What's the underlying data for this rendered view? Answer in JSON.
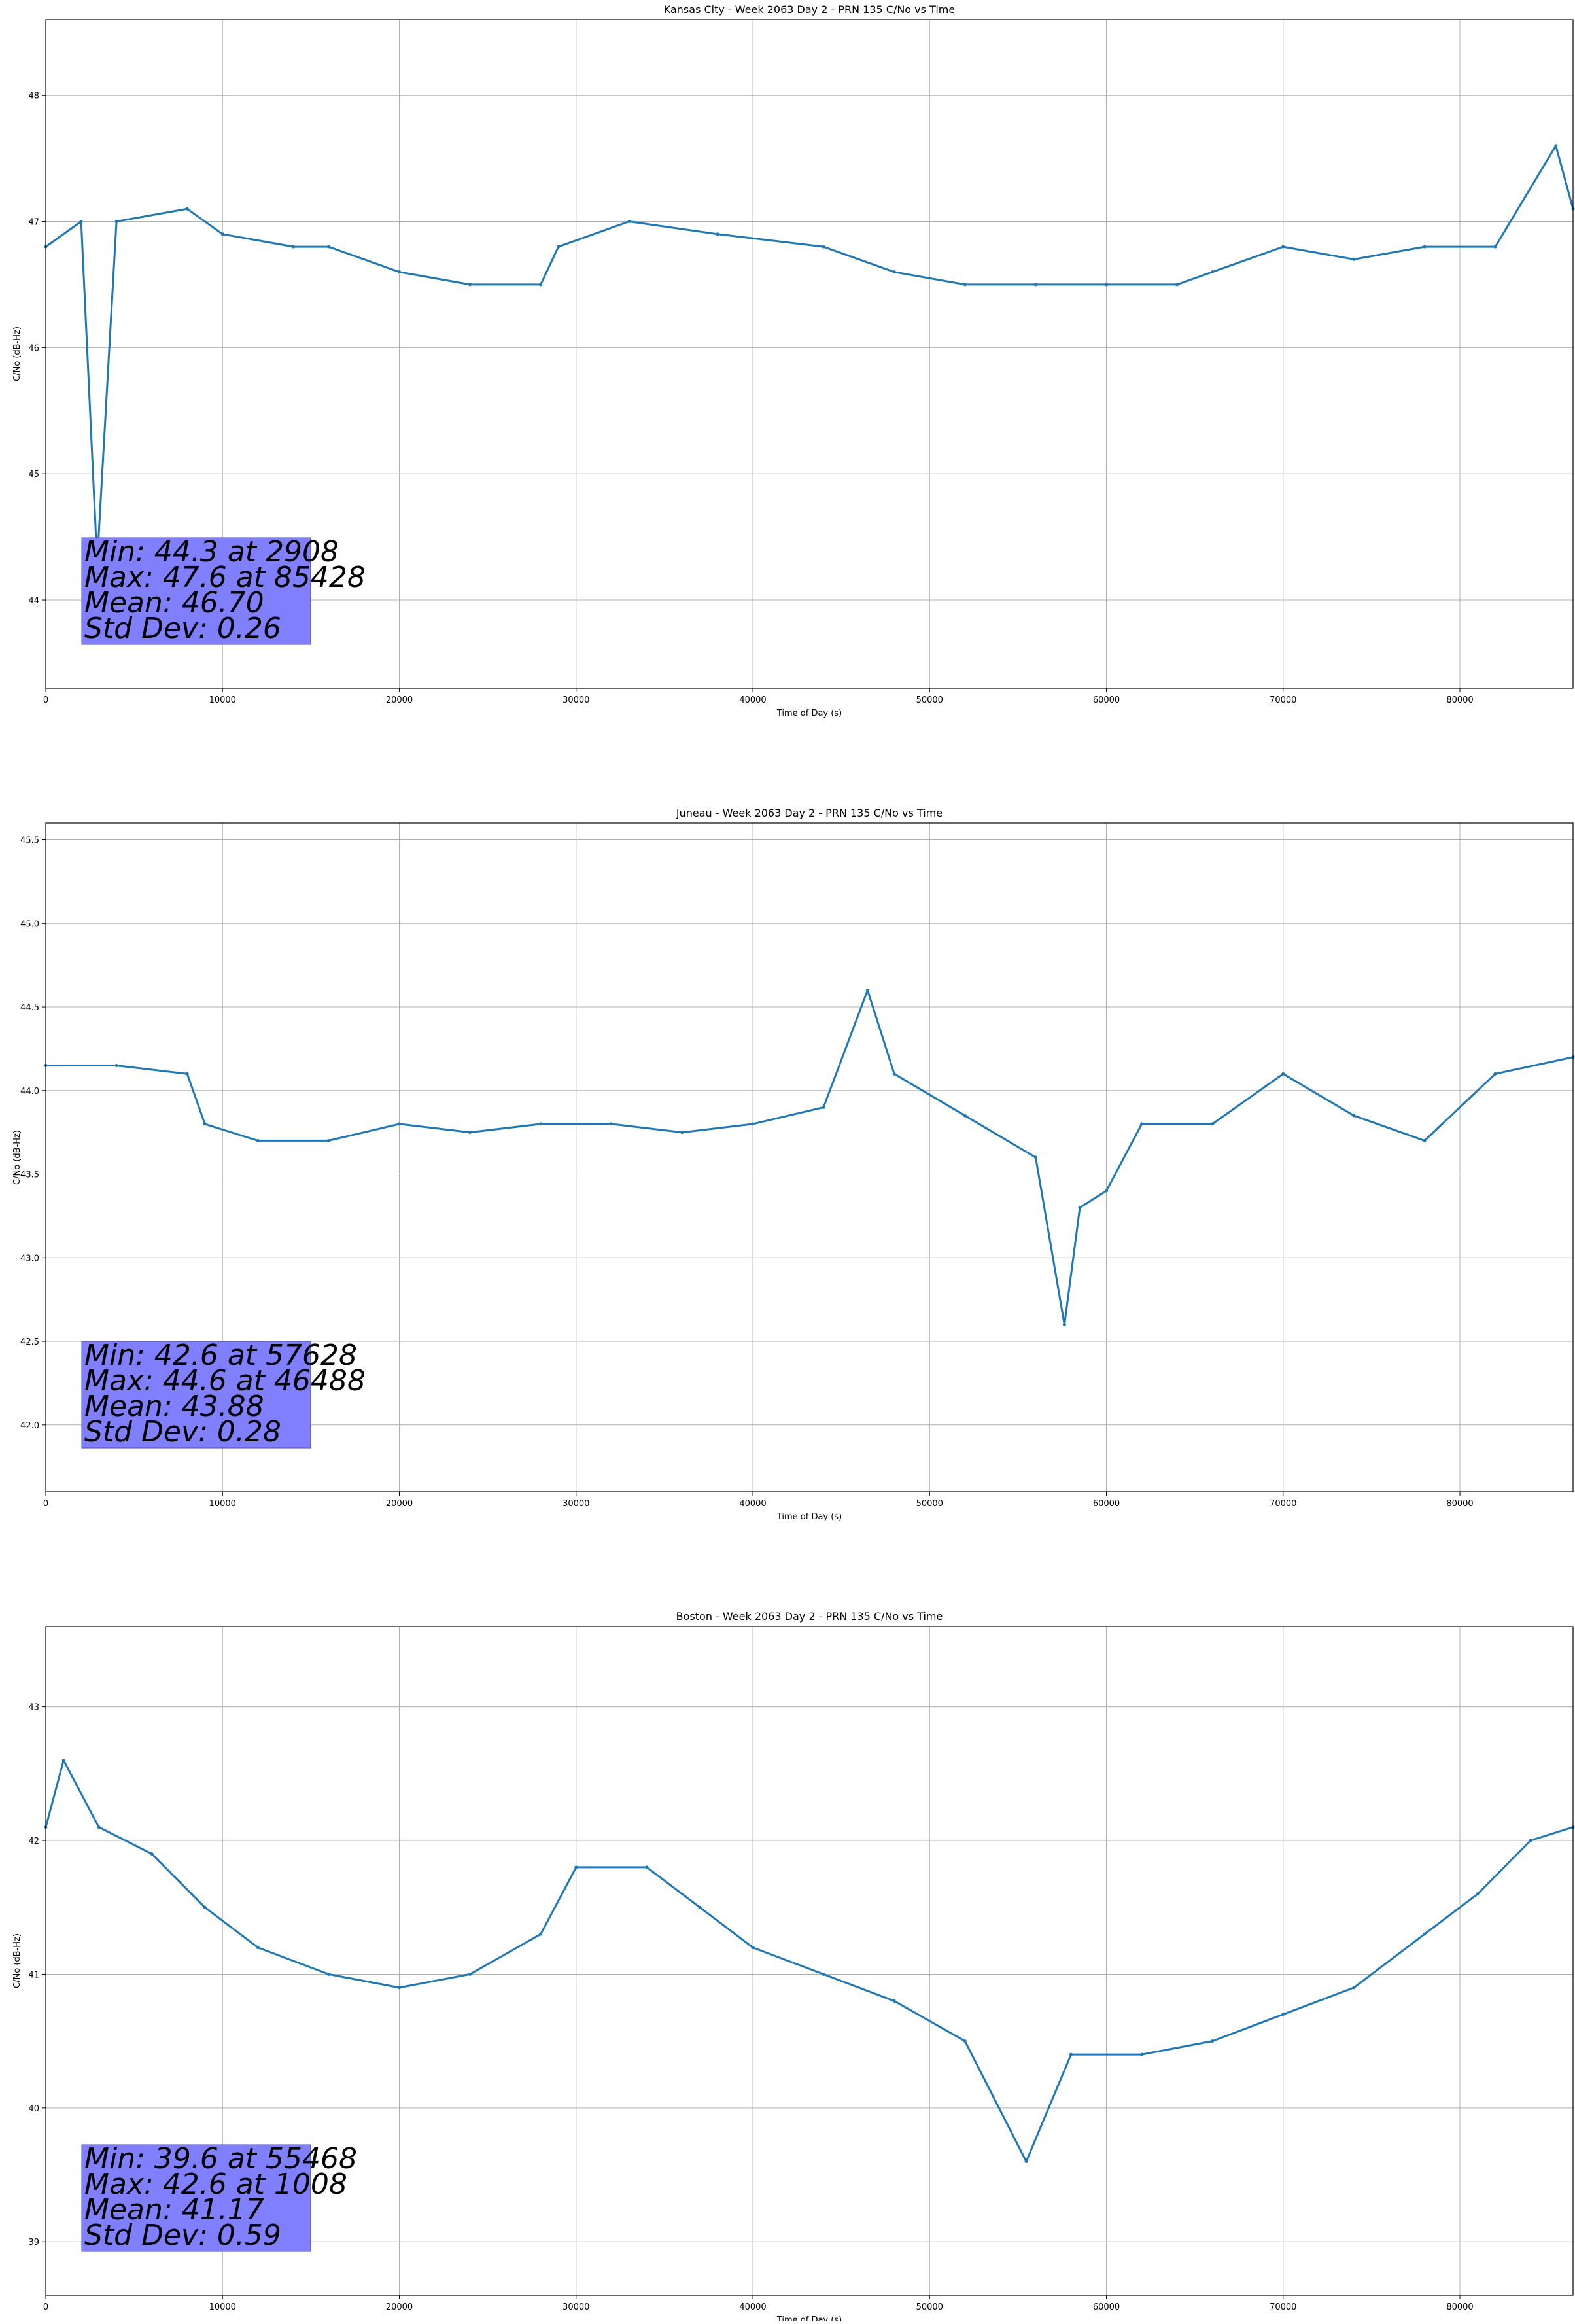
{
  "colors": {
    "series": "#1f77b4",
    "grid": "#b0b0b0",
    "stats_box": "#8080ff",
    "axis": "#000000"
  },
  "chart_data": [
    {
      "type": "line",
      "title": "Kansas City - Week 2063 Day 2 - PRN 135 C/No vs Time",
      "xlabel": "Time of Day (s)",
      "ylabel": "C/No (dB-Hz)",
      "xlim": [
        0,
        86400
      ],
      "ylim": [
        43.3,
        48.6
      ],
      "xticks": [
        0,
        10000,
        20000,
        30000,
        40000,
        50000,
        60000,
        70000,
        80000
      ],
      "yticks": [
        44,
        45,
        46,
        47,
        48
      ],
      "ytick_labels": [
        "44",
        "45",
        "46",
        "47",
        "48"
      ],
      "grid": true,
      "series": [
        {
          "x": [
            0,
            2000,
            2908,
            4000,
            8000,
            10000,
            14000,
            16000,
            20000,
            24000,
            28000,
            29000,
            33000,
            38000,
            44000,
            48000,
            52000,
            56000,
            60000,
            64000,
            66000,
            70000,
            74000,
            78000,
            82000,
            85428,
            86400
          ],
          "y": [
            46.8,
            47.0,
            44.3,
            47.0,
            47.1,
            46.9,
            46.8,
            46.8,
            46.6,
            46.5,
            46.5,
            46.8,
            47.0,
            46.9,
            46.8,
            46.6,
            46.5,
            46.5,
            46.5,
            46.5,
            46.6,
            46.8,
            46.7,
            46.8,
            46.8,
            47.6,
            47.1
          ]
        }
      ],
      "stats": [
        "Min: 44.3 at 2908",
        "Max: 47.6 at 85428",
        "Mean: 46.70",
        "Std Dev: 0.26"
      ]
    },
    {
      "type": "line",
      "title": "Juneau - Week 2063 Day 2 - PRN 135 C/No vs Time",
      "xlabel": "Time of Day (s)",
      "ylabel": "C/No (dB-Hz)",
      "xlim": [
        0,
        86400
      ],
      "ylim": [
        41.6,
        45.6
      ],
      "xticks": [
        0,
        10000,
        20000,
        30000,
        40000,
        50000,
        60000,
        70000,
        80000
      ],
      "yticks": [
        42.0,
        42.5,
        43.0,
        43.5,
        44.0,
        44.5,
        45.0,
        45.5
      ],
      "ytick_labels": [
        "42.0",
        "42.5",
        "43.0",
        "43.5",
        "44.0",
        "44.5",
        "45.0",
        "45.5"
      ],
      "grid": true,
      "series": [
        {
          "x": [
            0,
            4000,
            8000,
            9000,
            12000,
            16000,
            20000,
            24000,
            28000,
            32000,
            36000,
            40000,
            44000,
            46488,
            48000,
            52000,
            56000,
            57628,
            58500,
            60000,
            62000,
            66000,
            70000,
            74000,
            78000,
            82000,
            86400
          ],
          "y": [
            44.15,
            44.15,
            44.1,
            43.8,
            43.7,
            43.7,
            43.8,
            43.75,
            43.8,
            43.8,
            43.75,
            43.8,
            43.9,
            44.6,
            44.1,
            43.85,
            43.6,
            42.6,
            43.3,
            43.4,
            43.8,
            43.8,
            44.1,
            43.85,
            43.7,
            44.1,
            44.2
          ]
        }
      ],
      "stats": [
        "Min: 42.6 at 57628",
        "Max: 44.6 at 46488",
        "Mean: 43.88",
        "Std Dev: 0.28"
      ]
    },
    {
      "type": "line",
      "title": "Boston - Week 2063 Day 2 - PRN 135 C/No vs Time",
      "xlabel": "Time of Day (s)",
      "ylabel": "C/No (dB-Hz)",
      "xlim": [
        0,
        86400
      ],
      "ylim": [
        38.6,
        43.6
      ],
      "xticks": [
        0,
        10000,
        20000,
        30000,
        40000,
        50000,
        60000,
        70000,
        80000
      ],
      "yticks": [
        39,
        40,
        41,
        42,
        43
      ],
      "ytick_labels": [
        "39",
        "40",
        "41",
        "42",
        "43"
      ],
      "grid": true,
      "series": [
        {
          "x": [
            0,
            1008,
            3000,
            6000,
            9000,
            12000,
            16000,
            20000,
            24000,
            28000,
            30000,
            34000,
            37000,
            40000,
            44000,
            48000,
            52000,
            55468,
            58000,
            62000,
            66000,
            70000,
            74000,
            78000,
            81000,
            84000,
            86400
          ],
          "y": [
            42.1,
            42.6,
            42.1,
            41.9,
            41.5,
            41.2,
            41.0,
            40.9,
            41.0,
            41.3,
            41.8,
            41.8,
            41.5,
            41.2,
            41.0,
            40.8,
            40.5,
            39.6,
            40.4,
            40.4,
            40.5,
            40.7,
            40.9,
            41.3,
            41.6,
            42.0,
            42.1
          ]
        }
      ],
      "stats": [
        "Min: 39.6 at 55468",
        "Max: 42.6 at 1008",
        "Mean: 41.17",
        "Std Dev: 0.59"
      ]
    }
  ]
}
